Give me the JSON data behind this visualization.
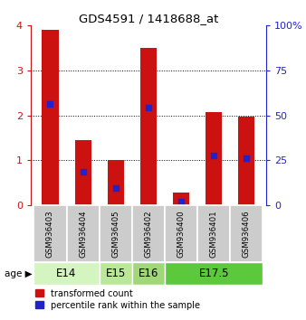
{
  "title": "GDS4591 / 1418688_at",
  "samples": [
    "GSM936403",
    "GSM936404",
    "GSM936405",
    "GSM936402",
    "GSM936400",
    "GSM936401",
    "GSM936406"
  ],
  "red_values": [
    3.9,
    1.45,
    1.0,
    3.5,
    0.28,
    2.08,
    1.97
  ],
  "blue_values": [
    2.25,
    0.75,
    0.38,
    2.18,
    0.08,
    1.1,
    1.05
  ],
  "age_groups": [
    {
      "label": "E14",
      "start": 0,
      "end": 2,
      "color": "#d4f5c0"
    },
    {
      "label": "E15",
      "start": 2,
      "end": 3,
      "color": "#b8e898"
    },
    {
      "label": "E16",
      "start": 3,
      "end": 4,
      "color": "#a0d878"
    },
    {
      "label": "E17.5",
      "start": 4,
      "end": 7,
      "color": "#5cc83c"
    }
  ],
  "ylim_left": [
    0,
    4
  ],
  "ylim_right": [
    0,
    100
  ],
  "yticks_left": [
    0,
    1,
    2,
    3,
    4
  ],
  "yticks_right": [
    0,
    25,
    50,
    75,
    100
  ],
  "bar_width": 0.5,
  "red_color": "#cc1111",
  "blue_color": "#2222cc",
  "bg_color": "#ffffff",
  "sample_box_color": "#cccccc",
  "label_red": "transformed count",
  "label_blue": "percentile rank within the sample"
}
